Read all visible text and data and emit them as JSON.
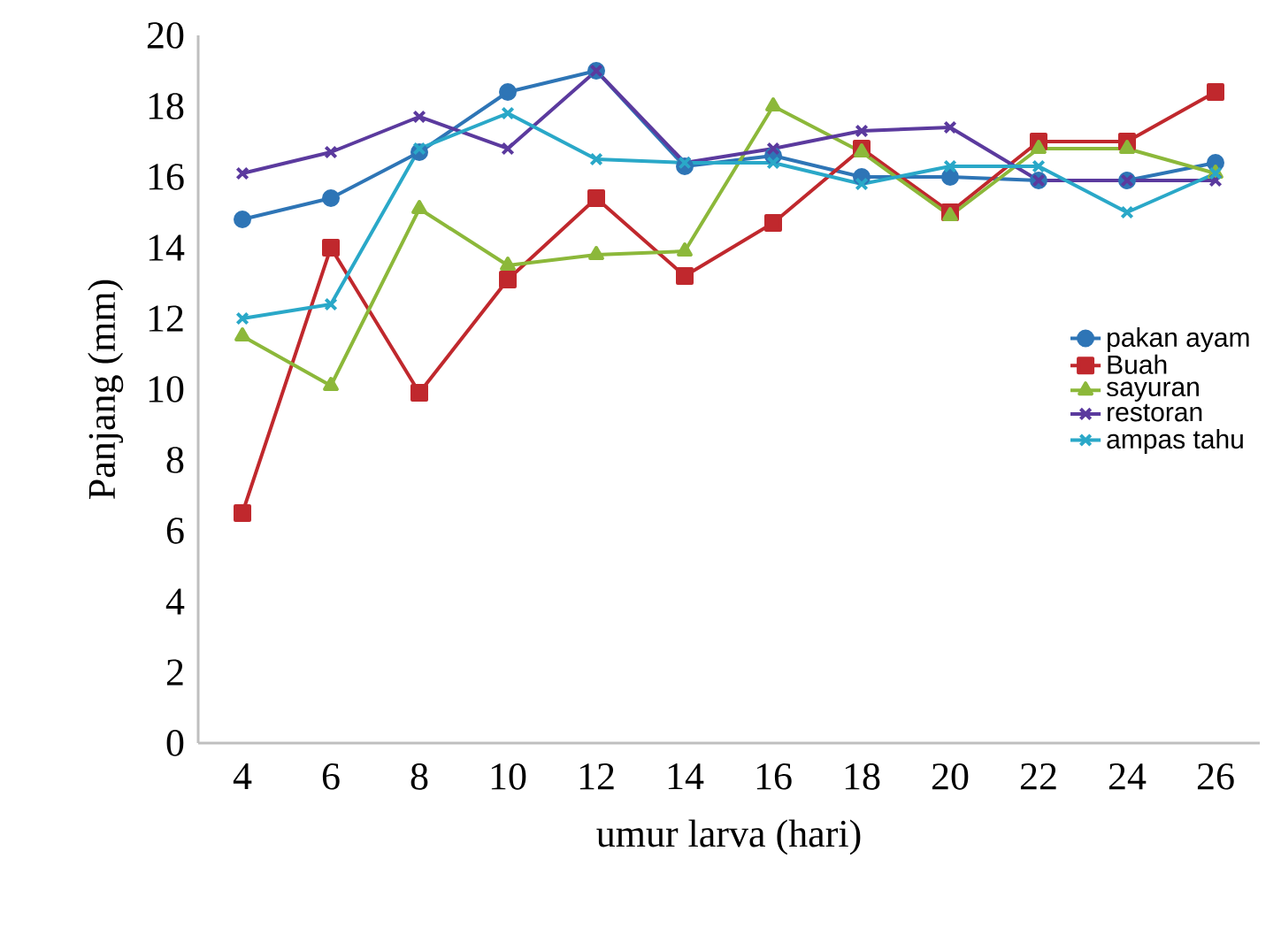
{
  "chart_data": {
    "type": "line",
    "xlabel": "umur larva (hari)",
    "ylabel": "Panjang (mm)",
    "categories": [
      "4",
      "6",
      "8",
      "10",
      "12",
      "14",
      "16",
      "18",
      "20",
      "22",
      "24",
      "26"
    ],
    "series": [
      {
        "name": "pakan ayam",
        "color": "#2e75b6",
        "marker": "circle",
        "values": [
          14.8,
          15.4,
          16.7,
          18.4,
          19.0,
          16.3,
          16.6,
          16.0,
          16.0,
          15.9,
          15.9,
          16.4
        ]
      },
      {
        "name": "Buah",
        "color": "#c0282d",
        "marker": "square",
        "values": [
          6.5,
          14.0,
          9.9,
          13.1,
          15.4,
          13.2,
          14.7,
          16.8,
          15.0,
          17.0,
          17.0,
          18.4
        ]
      },
      {
        "name": "sayuran",
        "color": "#8cb83a",
        "marker": "triangle",
        "values": [
          11.5,
          10.1,
          15.1,
          13.5,
          13.8,
          13.9,
          18.0,
          16.7,
          14.9,
          16.8,
          16.8,
          16.1
        ]
      },
      {
        "name": "restoran",
        "color": "#5b3a9e",
        "marker": "cross",
        "values": [
          16.1,
          16.7,
          17.7,
          16.8,
          19.0,
          16.4,
          16.8,
          17.3,
          17.4,
          15.9,
          15.9,
          15.9
        ]
      },
      {
        "name": "ampas tahu",
        "color": "#2aa8c8",
        "marker": "cross",
        "values": [
          12.0,
          12.4,
          16.8,
          17.8,
          16.5,
          16.4,
          16.4,
          15.8,
          16.3,
          16.3,
          15.0,
          16.1
        ]
      }
    ],
    "ylim": [
      0,
      20
    ],
    "yticks": [
      0,
      2,
      4,
      6,
      8,
      10,
      12,
      14,
      16,
      18,
      20
    ],
    "legend": "right",
    "grid": false,
    "line_style": "solid"
  }
}
